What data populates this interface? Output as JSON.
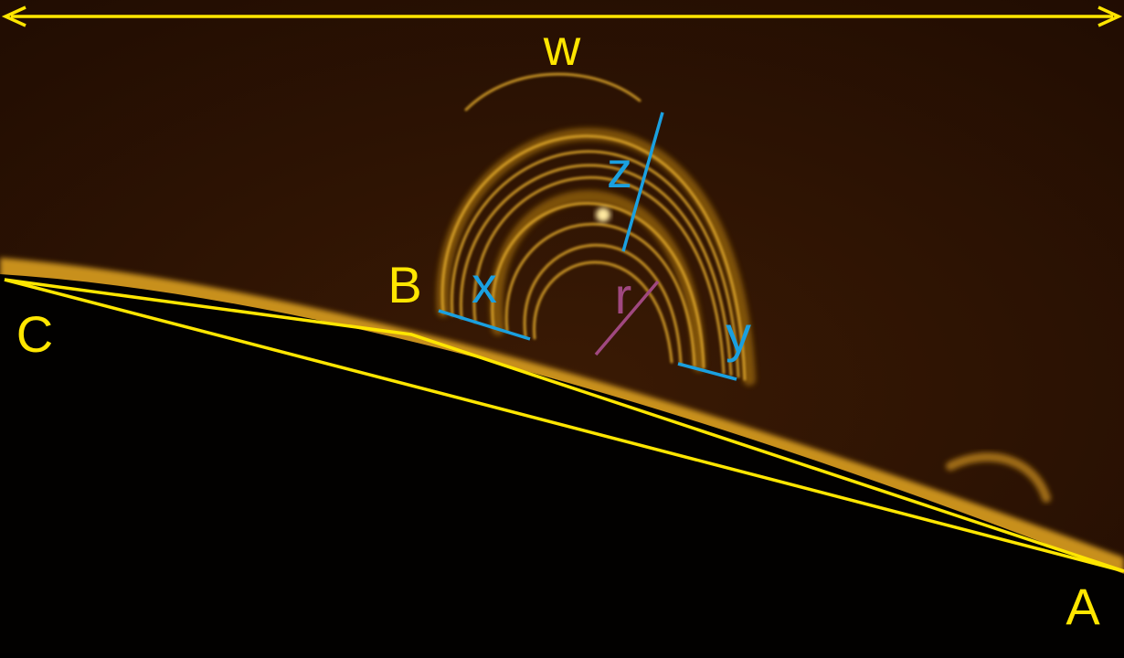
{
  "labels": {
    "w": "w",
    "z": "z",
    "x": "x",
    "b": "B",
    "r": "r",
    "y": "y",
    "c": "C",
    "a": "A"
  }
}
